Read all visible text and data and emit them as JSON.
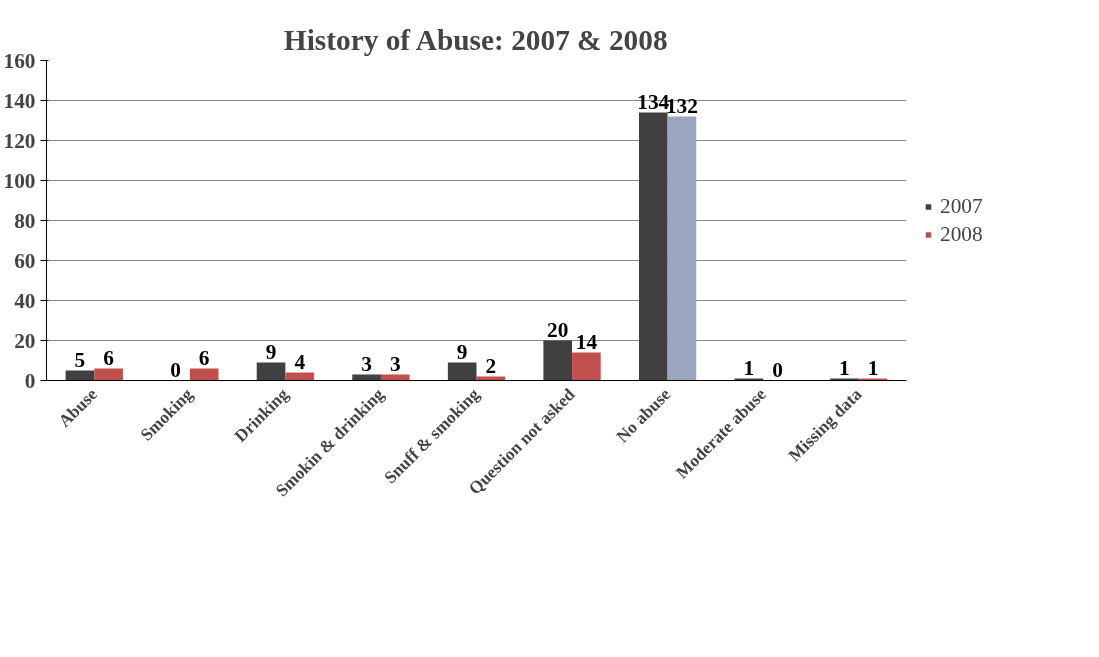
{
  "chart_data": {
    "type": "bar",
    "title": "History of Abuse: 2007 & 2008",
    "categories": [
      "Abuse",
      "Smoking",
      "Drinking",
      "Smokin & drinking",
      "Snuff & smoking",
      "Question not asked",
      "No abuse",
      "Moderate abuse",
      "Missing data"
    ],
    "series": [
      {
        "name": "2007",
        "color": "#404040",
        "values": [
          5,
          0,
          9,
          3,
          9,
          20,
          134,
          1,
          1
        ]
      },
      {
        "name": "2008",
        "color": "#c0504d",
        "colors": [
          "#c0504d",
          "#c0504d",
          "#c0504d",
          "#c0504d",
          "#c0504d",
          "#c0504d",
          "#9aa6c0",
          "#c0504d",
          "#c0504d"
        ],
        "values": [
          6,
          6,
          4,
          3,
          2,
          14,
          132,
          0,
          1
        ]
      }
    ],
    "ylim": [
      0,
      160
    ],
    "yticks": [
      0,
      20,
      40,
      60,
      80,
      100,
      120,
      140,
      160
    ],
    "grid": "y",
    "legend": "right",
    "data_labels": true
  }
}
